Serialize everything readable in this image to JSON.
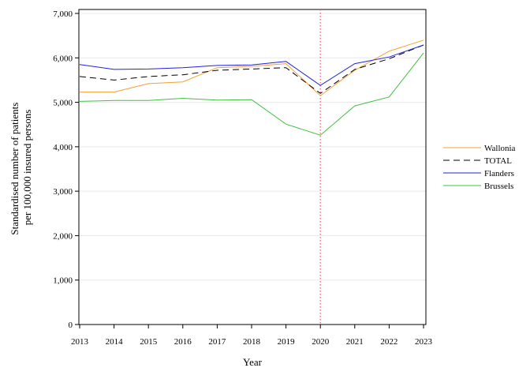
{
  "chart_data": {
    "type": "line",
    "title": "",
    "xlabel": "Year",
    "ylabel_line1": "Standardised number of patients",
    "ylabel_line2": "per 100,000 insured persons",
    "x": [
      2013,
      2014,
      2015,
      2016,
      2017,
      2018,
      2019,
      2020,
      2021,
      2022,
      2023
    ],
    "xlim": [
      2013,
      2023
    ],
    "ylim": [
      0,
      7000
    ],
    "yticks": [
      0,
      1000,
      2000,
      3000,
      4000,
      5000,
      6000,
      7000
    ],
    "ytick_labels": [
      "0",
      "1,000",
      "2,000",
      "3,000",
      "4,000",
      "5,000",
      "6,000",
      "7,000"
    ],
    "grid": "horizontal",
    "legend_position": "right",
    "reference_line": {
      "x": 2020,
      "color": "#e06070",
      "style": "dotted"
    },
    "series": [
      {
        "name": "Wallonia",
        "color": "#f5a030",
        "dash": "none",
        "values": [
          5230,
          5230,
          5420,
          5460,
          5780,
          5810,
          5870,
          5150,
          5720,
          6150,
          6400
        ]
      },
      {
        "name": "TOTAL",
        "color": "#000000",
        "dash": "8,5",
        "values": [
          5580,
          5500,
          5580,
          5620,
          5720,
          5750,
          5780,
          5200,
          5740,
          5980,
          6290
        ]
      },
      {
        "name": "Flanders",
        "color": "#2020e0",
        "dash": "none",
        "values": [
          5850,
          5740,
          5750,
          5780,
          5830,
          5840,
          5920,
          5380,
          5870,
          6020,
          6290
        ]
      },
      {
        "name": "Brussels",
        "color": "#40c040",
        "dash": "none",
        "values": [
          5020,
          5040,
          5040,
          5090,
          5050,
          5060,
          4510,
          4260,
          4920,
          5120,
          6110
        ]
      }
    ]
  }
}
